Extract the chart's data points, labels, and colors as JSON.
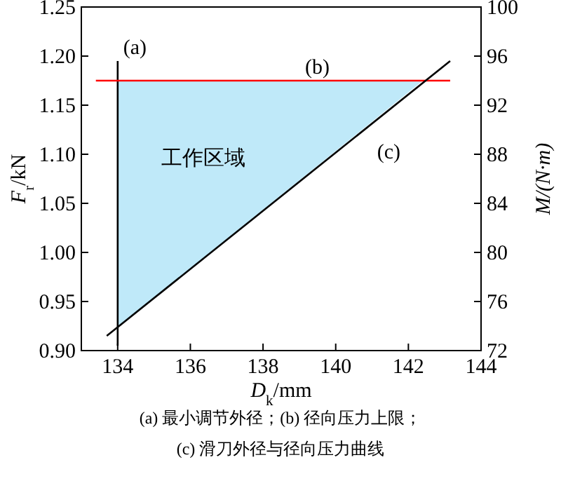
{
  "chart_data": {
    "type": "line",
    "xlabel": "D$_{k}$/mm",
    "ylabel": "F$_{r}$/kN",
    "y2label": "M/(N·m)",
    "xlim": [
      133,
      144
    ],
    "xticks": [
      134,
      136,
      138,
      140,
      142,
      144
    ],
    "ylim": [
      0.9,
      1.25
    ],
    "yticks": [
      {
        "value": 0.9,
        "label": "0.90"
      },
      {
        "value": 0.95,
        "label": "0.95"
      },
      {
        "value": 1.0,
        "label": "1.00"
      },
      {
        "value": 1.05,
        "label": "1.05"
      },
      {
        "value": 1.1,
        "label": "1.10"
      },
      {
        "value": 1.15,
        "label": "1.15"
      },
      {
        "value": 1.2,
        "label": "1.20"
      },
      {
        "value": 1.25,
        "label": "1.25"
      }
    ],
    "y2lim": [
      72,
      100
    ],
    "y2ticks": [
      72,
      76,
      80,
      84,
      88,
      92,
      96,
      100
    ],
    "grid": false,
    "series": [
      {
        "type": "area",
        "color": "#bfe9f9",
        "x": [
          134,
          142.4,
          134
        ],
        "values": [
          1.175,
          1.175,
          0.924
        ]
      },
      {
        "color": "#000000",
        "x": [
          134,
          134
        ],
        "values": [
          0.905,
          1.195
        ]
      },
      {
        "color": "#ff0000",
        "x": [
          133.4,
          143.15
        ],
        "values": [
          1.175,
          1.175
        ]
      },
      {
        "color": "#000000",
        "x": [
          133.7,
          143.15
        ],
        "values": [
          0.915,
          1.195
        ]
      }
    ],
    "annotations": [
      {
        "text": "(a)",
        "x": 134,
        "y": 1.195
      },
      {
        "text": "(b)",
        "x": 139,
        "y": 1.175
      },
      "(c)",
      "工作区域",
      "(a) 最小调节外径；(b) 径向压力上限；",
      "(c) 滑刀外径与径向压力曲线"
    ]
  }
}
